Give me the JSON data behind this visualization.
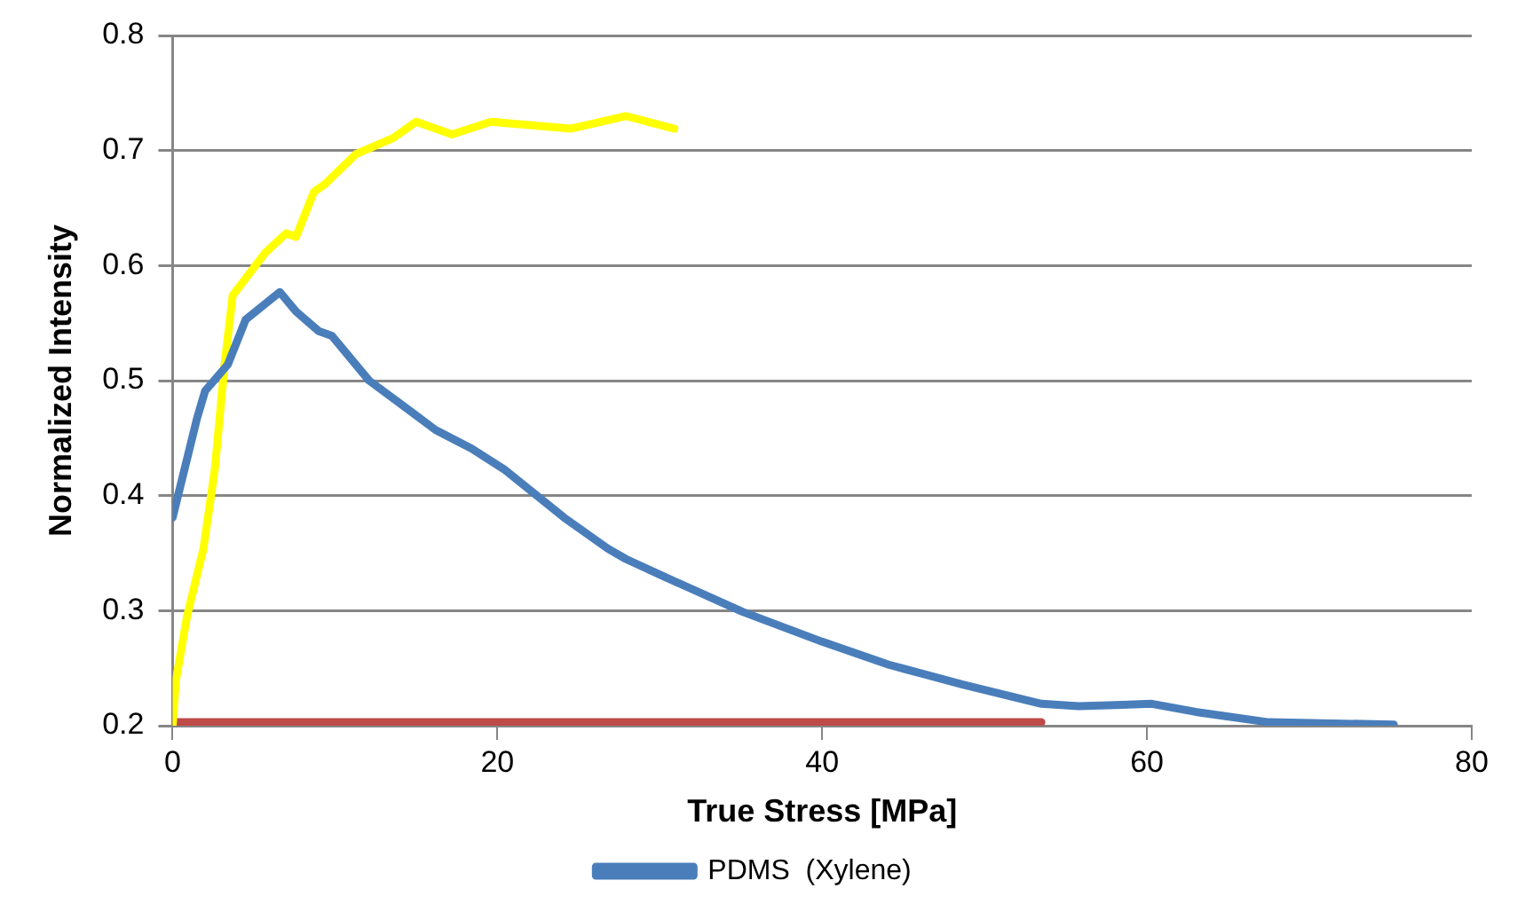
{
  "chart_data": {
    "type": "line",
    "xlabel": "True Stress [MPa]",
    "ylabel": "Normalized Intensity",
    "xlim": [
      0,
      80
    ],
    "xticks": [
      0,
      20,
      40,
      60,
      80
    ],
    "ylim": [
      0.2,
      0.8
    ],
    "yticks": [
      0.2,
      0.3,
      0.4,
      0.5,
      0.6,
      0.7,
      0.8
    ],
    "grid": "y",
    "legend": "bottom",
    "marker": "none",
    "line_style": "solid",
    "series": [
      {
        "name": "PDMS  (Xylene)",
        "color": "#4a7ebb",
        "x": [
          0,
          1.5,
          2.0,
          3.4,
          4.5,
          6.6,
          7.6,
          9,
          9.8,
          12.1,
          14.4,
          16.2,
          18.4,
          20.4,
          24.1,
          26.8,
          27.9,
          30.2,
          35.1,
          40,
          44.1,
          48.6,
          53.5,
          55.8,
          60.3,
          63,
          67.5,
          75.2
        ],
        "values": [
          0.381,
          0.467,
          0.491,
          0.514,
          0.553,
          0.577,
          0.56,
          0.543,
          0.539,
          0.5,
          0.476,
          0.457,
          0.441,
          0.423,
          0.381,
          0.354,
          0.345,
          0.33,
          0.299,
          0.273,
          0.253,
          0.236,
          0.219,
          0.217,
          0.219,
          0.212,
          0.203,
          0.201
        ]
      },
      {
        "color": "#ffff00",
        "x": [
          0,
          0.2,
          0.9,
          1.9,
          2.6,
          3.2,
          3.7,
          5.7,
          7.0,
          7.6,
          8.7,
          9.4,
          11.3,
          13.6,
          15.0,
          17.2,
          19.6,
          24.5,
          27.9,
          30.9
        ],
        "values": [
          0.2,
          0.239,
          0.296,
          0.354,
          0.423,
          0.514,
          0.574,
          0.611,
          0.628,
          0.625,
          0.664,
          0.671,
          0.697,
          0.711,
          0.725,
          0.714,
          0.725,
          0.719,
          0.73,
          0.719
        ]
      },
      {
        "color": "#be4b48",
        "x": [
          0,
          53.5
        ],
        "values": [
          0.203,
          0.203
        ]
      }
    ]
  }
}
